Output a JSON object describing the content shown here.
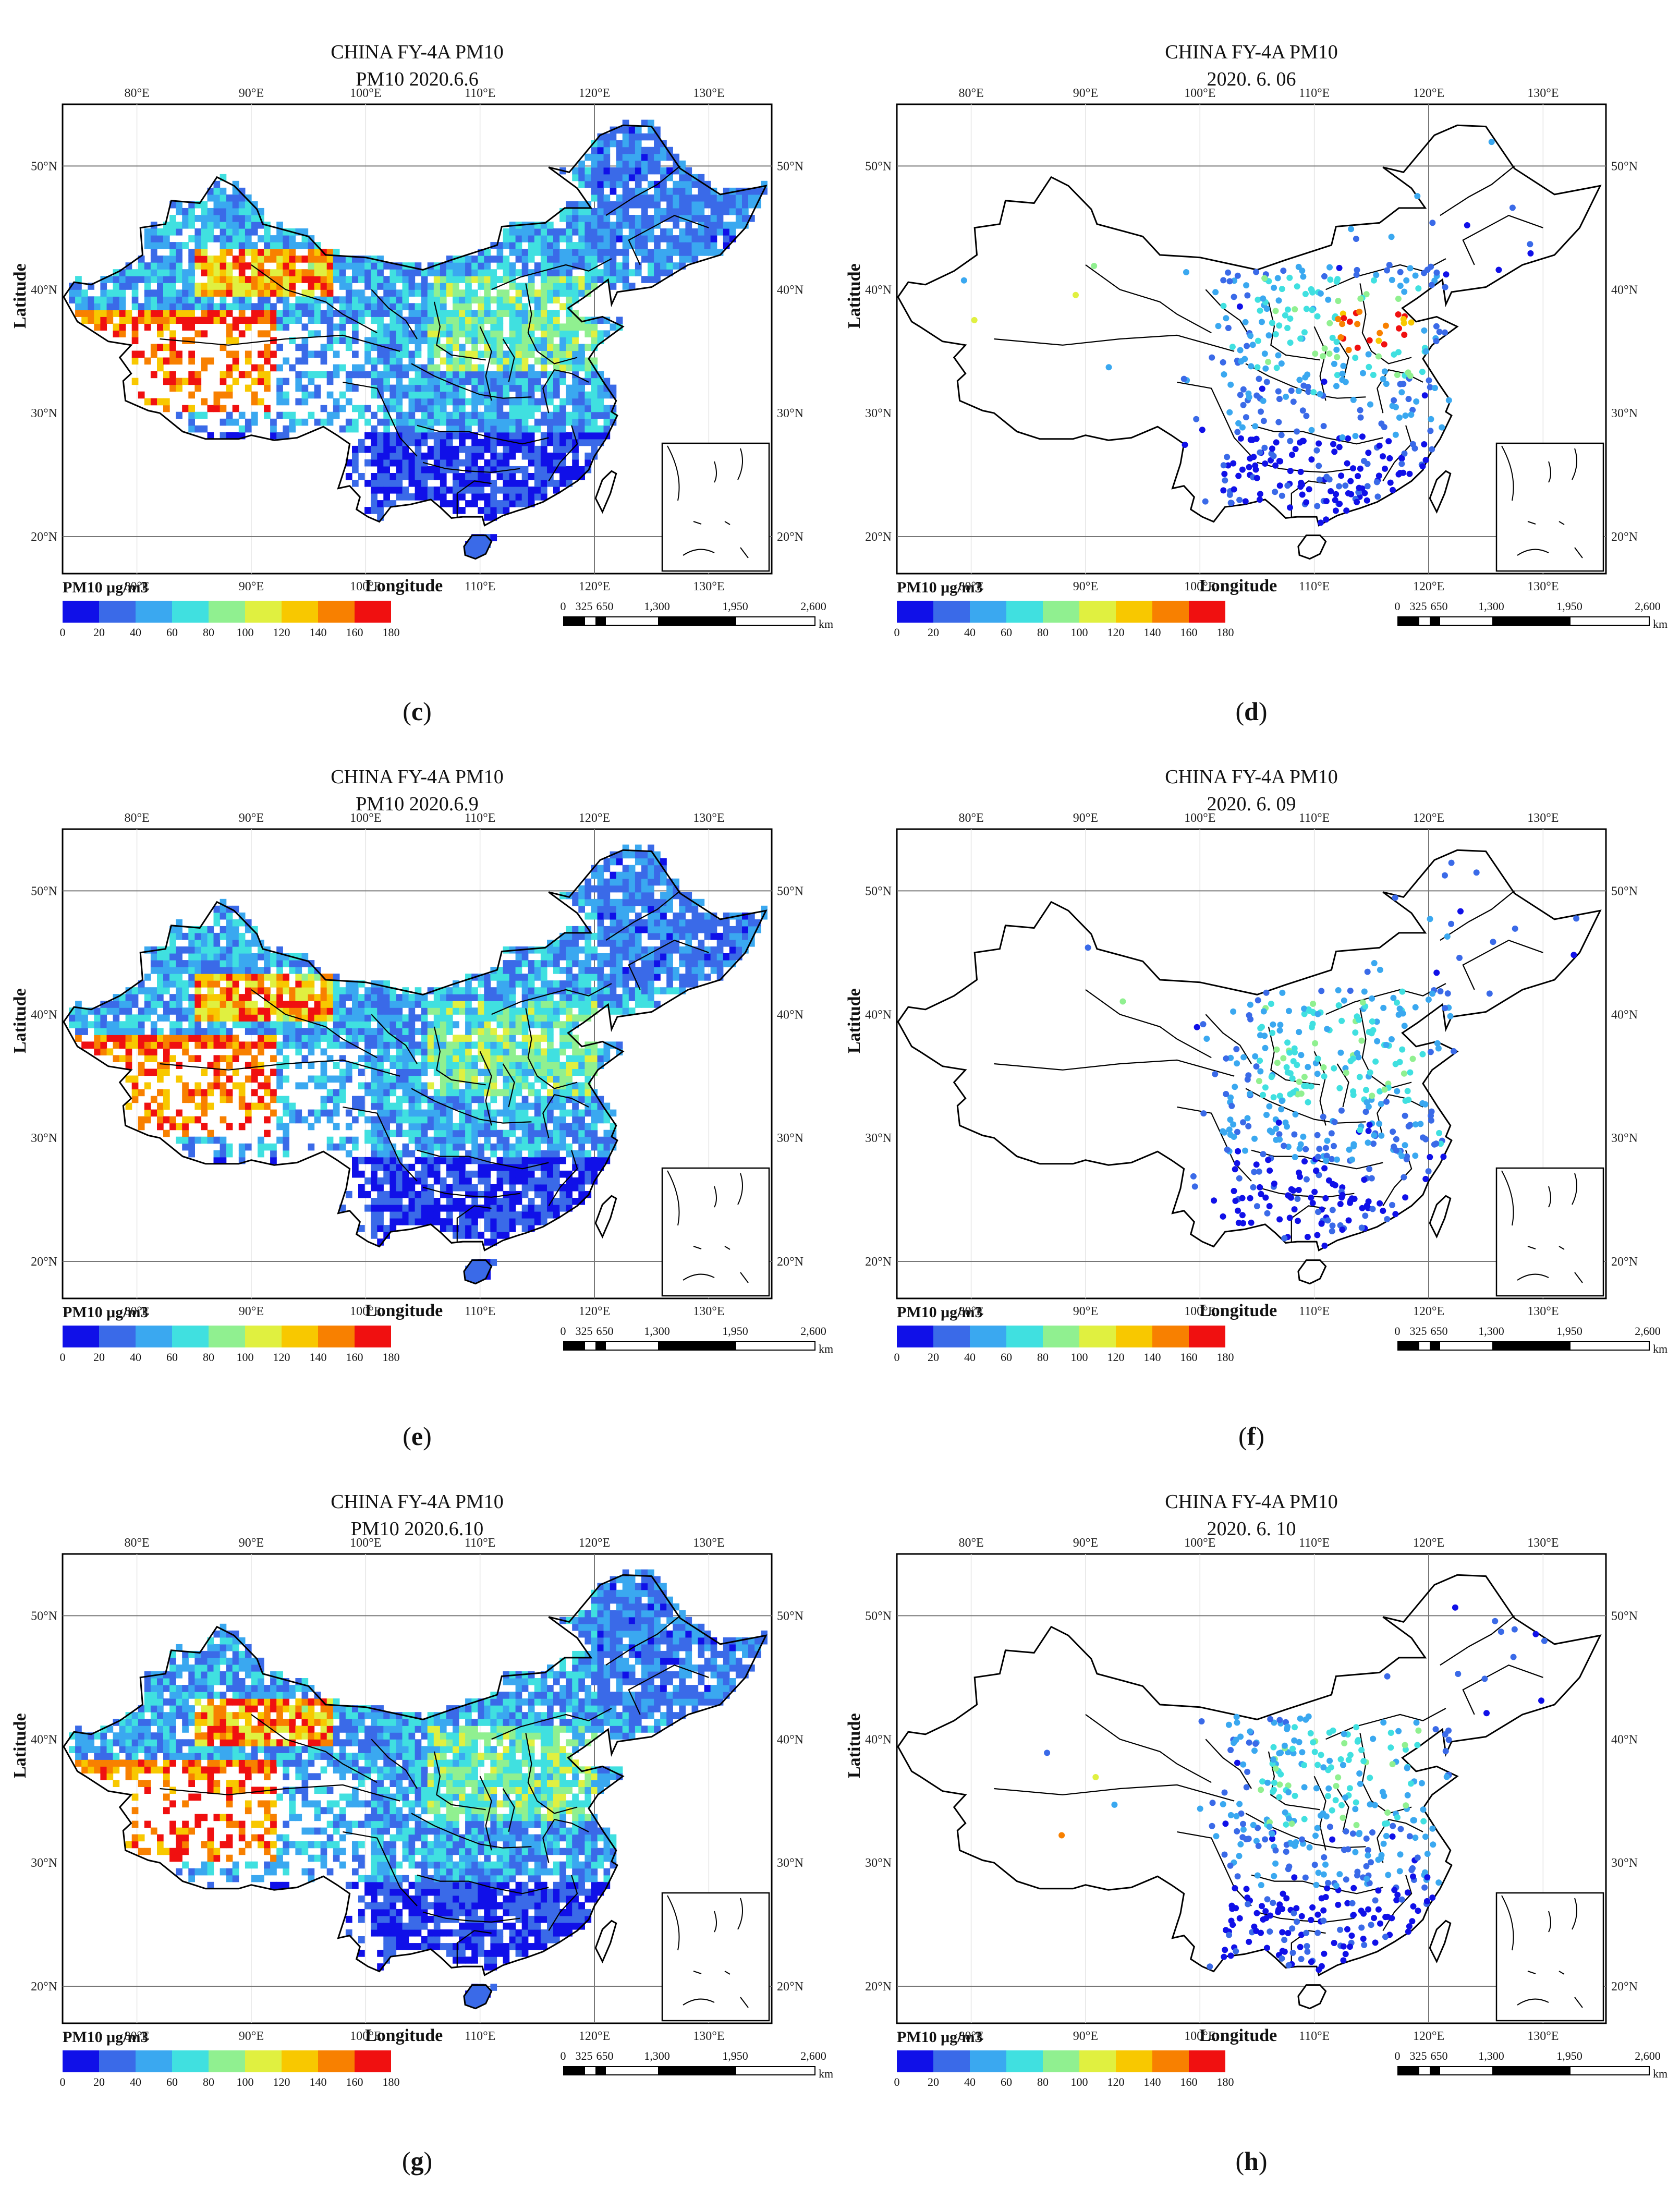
{
  "panels": [
    {
      "id": "c",
      "kind": "raster",
      "title1": "CHINA FY-4A  PM10",
      "title2": "PM10 2020.6.6",
      "caption_letter": "c",
      "seed": 3
    },
    {
      "id": "d",
      "kind": "stations",
      "title1": "CHINA FY-4A  PM10",
      "title2": "2020. 6. 06",
      "caption_letter": "d",
      "seed": 7
    },
    {
      "id": "e",
      "kind": "raster",
      "title1": "CHINA FY-4A  PM10",
      "title2": "PM10 2020.6.9",
      "caption_letter": "e",
      "seed": 11
    },
    {
      "id": "f",
      "kind": "stations",
      "title1": "CHINA FY-4A  PM10",
      "title2": "2020. 6. 09",
      "caption_letter": "f",
      "seed": 13
    },
    {
      "id": "g",
      "kind": "raster",
      "title1": "CHINA FY-4A  PM10",
      "title2": "PM10 2020.6.10",
      "caption_letter": "g",
      "seed": 17
    },
    {
      "id": "h",
      "kind": "stations",
      "title1": "CHINA FY-4A  PM10",
      "title2": "2020. 6. 10",
      "caption_letter": "h",
      "seed": 19
    }
  ],
  "axes": {
    "xlabel": "Longitude",
    "ylabel": "Latitude",
    "lon_ticks": [
      "80°E",
      "90°E",
      "100°E",
      "110°E",
      "120°E",
      "130°E"
    ],
    "lat_ticks": [
      "50°N",
      "40°N",
      "30°N",
      "20°N"
    ]
  },
  "legend": {
    "title": "PM10 μg/m3",
    "ticks": [
      "0",
      "20",
      "40",
      "60",
      "80",
      "100",
      "120",
      "140",
      "160",
      "180"
    ],
    "colors": [
      "#1010e8",
      "#3a6ae8",
      "#3aa8f0",
      "#40e0e0",
      "#90f090",
      "#e0f040",
      "#f8c800",
      "#f88000",
      "#f01010"
    ]
  },
  "scalebar": {
    "labels": [
      "0",
      "325",
      "650",
      "1,300",
      "1,950",
      "2,600"
    ],
    "unit": "km"
  }
}
